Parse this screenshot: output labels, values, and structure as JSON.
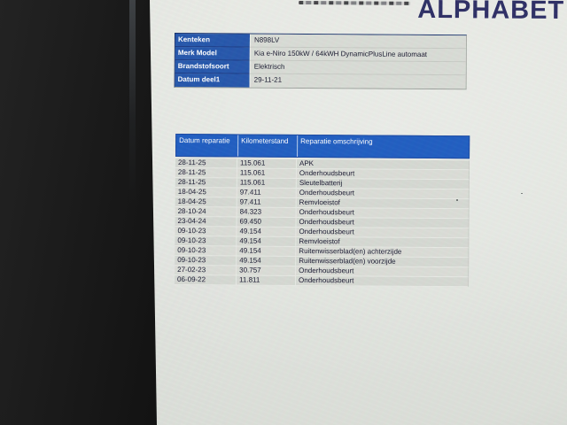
{
  "logo": {
    "text": "ALPHABET"
  },
  "vehicle_info": {
    "rows": [
      {
        "label": "Kenteken",
        "value": "N898LV"
      },
      {
        "label": "Merk Model",
        "value": "Kia e-Niro 150kW / 64kWH DynamicPlusLine automaat"
      },
      {
        "label": "Brandstofsoort",
        "value": "Elektrisch"
      },
      {
        "label": "Datum deel1",
        "value": "29-11-21"
      }
    ]
  },
  "repair_table": {
    "headers": [
      "Datum reparatie",
      "Kilometerstand",
      "Reparatie omschrijving"
    ],
    "rows": [
      [
        "28-11-25",
        "115.061",
        "APK"
      ],
      [
        "28-11-25",
        "115.061",
        "Onderhoudsbeurt"
      ],
      [
        "28-11-25",
        "115.061",
        "Sleutelbatterij"
      ],
      [
        "18-04-25",
        "97.411",
        "Onderhoudsbeurt"
      ],
      [
        "18-04-25",
        "97.411",
        "Remvloeistof"
      ],
      [
        "28-10-24",
        "84.323",
        "Onderhoudsbeurt"
      ],
      [
        "23-04-24",
        "69.450",
        "Onderhoudsbeurt"
      ],
      [
        "09-10-23",
        "49.154",
        "Onderhoudsbeurt"
      ],
      [
        "09-10-23",
        "49.154",
        "Remvloeistof"
      ],
      [
        "09-10-23",
        "49.154",
        "Ruitenwisserblad(en) achterzijde"
      ],
      [
        "09-10-23",
        "49.154",
        "Ruitenwisserblad(en) voorzijde"
      ],
      [
        "27-02-23",
        "30.757",
        "Onderhoudsbeurt"
      ],
      [
        "06-09-22",
        "11.811",
        "Onderhoudsbeurt"
      ]
    ]
  },
  "colors": {
    "logo_navy": "#2b2c63",
    "label_blue": "#2455aa",
    "header_blue": "#1e5cc0",
    "screen_bg": "#e3e6e0",
    "cell_gray": "#d5d8d2"
  }
}
